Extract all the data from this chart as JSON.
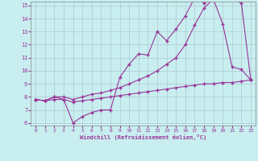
{
  "xlabel": "Windchill (Refroidissement éolien,°C)",
  "bg_color": "#c8eef0",
  "grid_color": "#b0c8d0",
  "line_color": "#993399",
  "xmin": 0,
  "xmax": 23,
  "ymin": 6,
  "ymax": 15,
  "yticks": [
    6,
    7,
    8,
    9,
    10,
    11,
    12,
    13,
    14,
    15
  ],
  "line1_x": [
    0,
    1,
    2,
    3,
    4,
    5,
    6,
    7,
    8,
    9,
    10,
    11,
    12,
    13,
    14,
    15,
    16,
    17,
    18,
    19,
    20,
    21,
    22,
    23
  ],
  "line1_y": [
    7.8,
    7.7,
    8.0,
    7.8,
    6.0,
    6.5,
    6.8,
    7.0,
    7.0,
    9.5,
    10.5,
    11.3,
    11.2,
    13.0,
    12.3,
    13.2,
    14.2,
    15.6,
    15.2,
    15.5,
    13.6,
    10.3,
    10.1,
    9.3
  ],
  "line2_x": [
    0,
    1,
    2,
    3,
    4,
    5,
    6,
    7,
    8,
    9,
    10,
    11,
    12,
    13,
    14,
    15,
    16,
    17,
    18,
    19,
    20,
    21,
    22,
    23
  ],
  "line2_y": [
    7.8,
    7.7,
    8.0,
    8.0,
    7.8,
    8.0,
    8.2,
    8.3,
    8.5,
    8.7,
    9.0,
    9.3,
    9.6,
    10.0,
    10.5,
    11.0,
    12.0,
    13.5,
    14.8,
    15.5,
    15.5,
    15.5,
    15.2,
    9.3
  ],
  "line3_x": [
    0,
    1,
    2,
    3,
    4,
    5,
    6,
    7,
    8,
    9,
    10,
    11,
    12,
    13,
    14,
    15,
    16,
    17,
    18,
    19,
    20,
    21,
    22,
    23
  ],
  "line3_y": [
    7.8,
    7.7,
    7.8,
    7.8,
    7.6,
    7.7,
    7.8,
    7.9,
    8.0,
    8.1,
    8.2,
    8.3,
    8.4,
    8.5,
    8.6,
    8.7,
    8.8,
    8.9,
    9.0,
    9.0,
    9.1,
    9.1,
    9.2,
    9.3
  ]
}
